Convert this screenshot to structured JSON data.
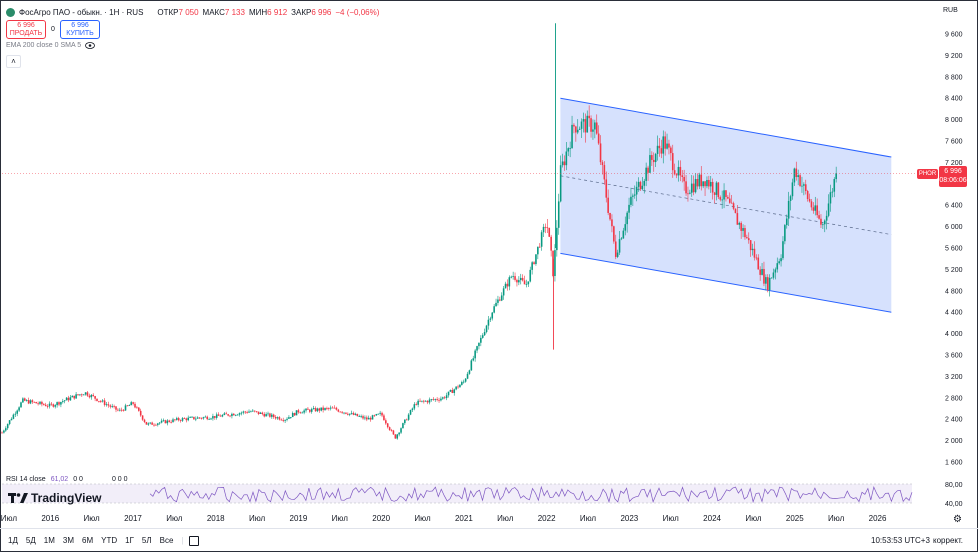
{
  "header": {
    "title": "ФосАгро ПАО - обыкн. · 1Н · RUS",
    "ohlc": [
      {
        "key": "ОТКР",
        "val": "7 050"
      },
      {
        "key": "МАКС",
        "val": "7 133"
      },
      {
        "key": "МИН",
        "val": "6 912"
      },
      {
        "key": "ЗАКР",
        "val": "6 996"
      }
    ],
    "change": "−4 (−0,06%)",
    "currency": "RUB"
  },
  "trade": {
    "sell_price": "6 996",
    "sell_label": "ПРОДАТЬ",
    "spread": "0",
    "buy_price": "6 996",
    "buy_label": "КУПИТЬ"
  },
  "indicators": {
    "ema_label": "EMA 200 close 0 SMA 5",
    "collapse": "˄"
  },
  "price_axis": [
    "9 600",
    "9 200",
    "8 800",
    "8 400",
    "8 000",
    "7 600",
    "7 200",
    "6 800",
    "6 400",
    "6 000",
    "5 600",
    "5 200",
    "4 800",
    "4 400",
    "4 000",
    "3 600",
    "3 200",
    "2 800",
    "2 400",
    "2 000",
    "1 600"
  ],
  "last_price": {
    "symbol": "PHOR",
    "value": "6 996",
    "countdown": "08:06:06"
  },
  "rsi": {
    "label": "RSI 14 close",
    "value": "61,02",
    "extra1": "0 0",
    "extra2": "0 0 0",
    "axis": [
      "80,00",
      "40,00"
    ]
  },
  "time_axis": [
    "Июл",
    "2016",
    "Июл",
    "2017",
    "Июл",
    "2018",
    "Июл",
    "2019",
    "Июл",
    "2020",
    "Июл",
    "2021",
    "Июл",
    "2022",
    "Июл",
    "2023",
    "Июл",
    "2024",
    "Июл",
    "2025",
    "Июл",
    "2026"
  ],
  "bottom_bar": {
    "ranges": [
      "1Д",
      "5Д",
      "1М",
      "3М",
      "6М",
      "YTD",
      "1Г",
      "5Л",
      "Все"
    ],
    "clock": "10:53:53 UTC+3",
    "adjust": "коррект."
  },
  "brand": "TradingView",
  "colors": {
    "up": "#089981",
    "down": "#f23645",
    "channel_fill": "#cfdcfd",
    "channel_line": "#2962ff",
    "rsi": "#7e57c2"
  },
  "chart_data": {
    "type": "candlestick",
    "x_range": [
      "2015-06",
      "2026-06"
    ],
    "y_range": [
      1400,
      9800
    ],
    "price_path": [
      [
        "2015-06",
        2150
      ],
      [
        "2015-09",
        2750
      ],
      [
        "2016-01",
        2650
      ],
      [
        "2016-06",
        2900
      ],
      [
        "2016-11",
        2550
      ],
      [
        "2017-01",
        2700
      ],
      [
        "2017-03",
        2300
      ],
      [
        "2017-08",
        2400
      ],
      [
        "2018-01",
        2450
      ],
      [
        "2018-06",
        2550
      ],
      [
        "2018-11",
        2400
      ],
      [
        "2019-01",
        2550
      ],
      [
        "2019-06",
        2600
      ],
      [
        "2019-11",
        2400
      ],
      [
        "2020-01",
        2500
      ],
      [
        "2020-03",
        2050
      ],
      [
        "2020-06",
        2700
      ],
      [
        "2020-10",
        2800
      ],
      [
        "2021-01",
        3100
      ],
      [
        "2021-05",
        4400
      ],
      [
        "2021-08",
        5100
      ],
      [
        "2021-10",
        4900
      ],
      [
        "2022-01",
        6100
      ],
      [
        "2022-02",
        5100
      ],
      [
        "2022-03",
        7000
      ],
      [
        "2022-05",
        7900
      ],
      [
        "2022-08",
        7900
      ],
      [
        "2022-11",
        5500
      ],
      [
        "2023-01",
        6400
      ],
      [
        "2023-04",
        7200
      ],
      [
        "2023-06",
        7600
      ],
      [
        "2023-09",
        6700
      ],
      [
        "2023-12",
        6900
      ],
      [
        "2024-03",
        6500
      ],
      [
        "2024-06",
        5800
      ],
      [
        "2024-09",
        4900
      ],
      [
        "2024-11",
        5500
      ],
      [
        "2025-01",
        7100
      ],
      [
        "2025-03",
        6500
      ],
      [
        "2025-05",
        6000
      ],
      [
        "2025-07",
        6996
      ]
    ],
    "channel": {
      "upper": [
        [
          "2022-03",
          8400
        ],
        [
          "2026-03",
          7300
        ]
      ],
      "lower": [
        [
          "2022-03",
          5500
        ],
        [
          "2026-03",
          4400
        ]
      ],
      "mid": [
        [
          "2022-03",
          6950
        ],
        [
          "2026-03",
          5850
        ]
      ]
    },
    "last": 6996
  }
}
